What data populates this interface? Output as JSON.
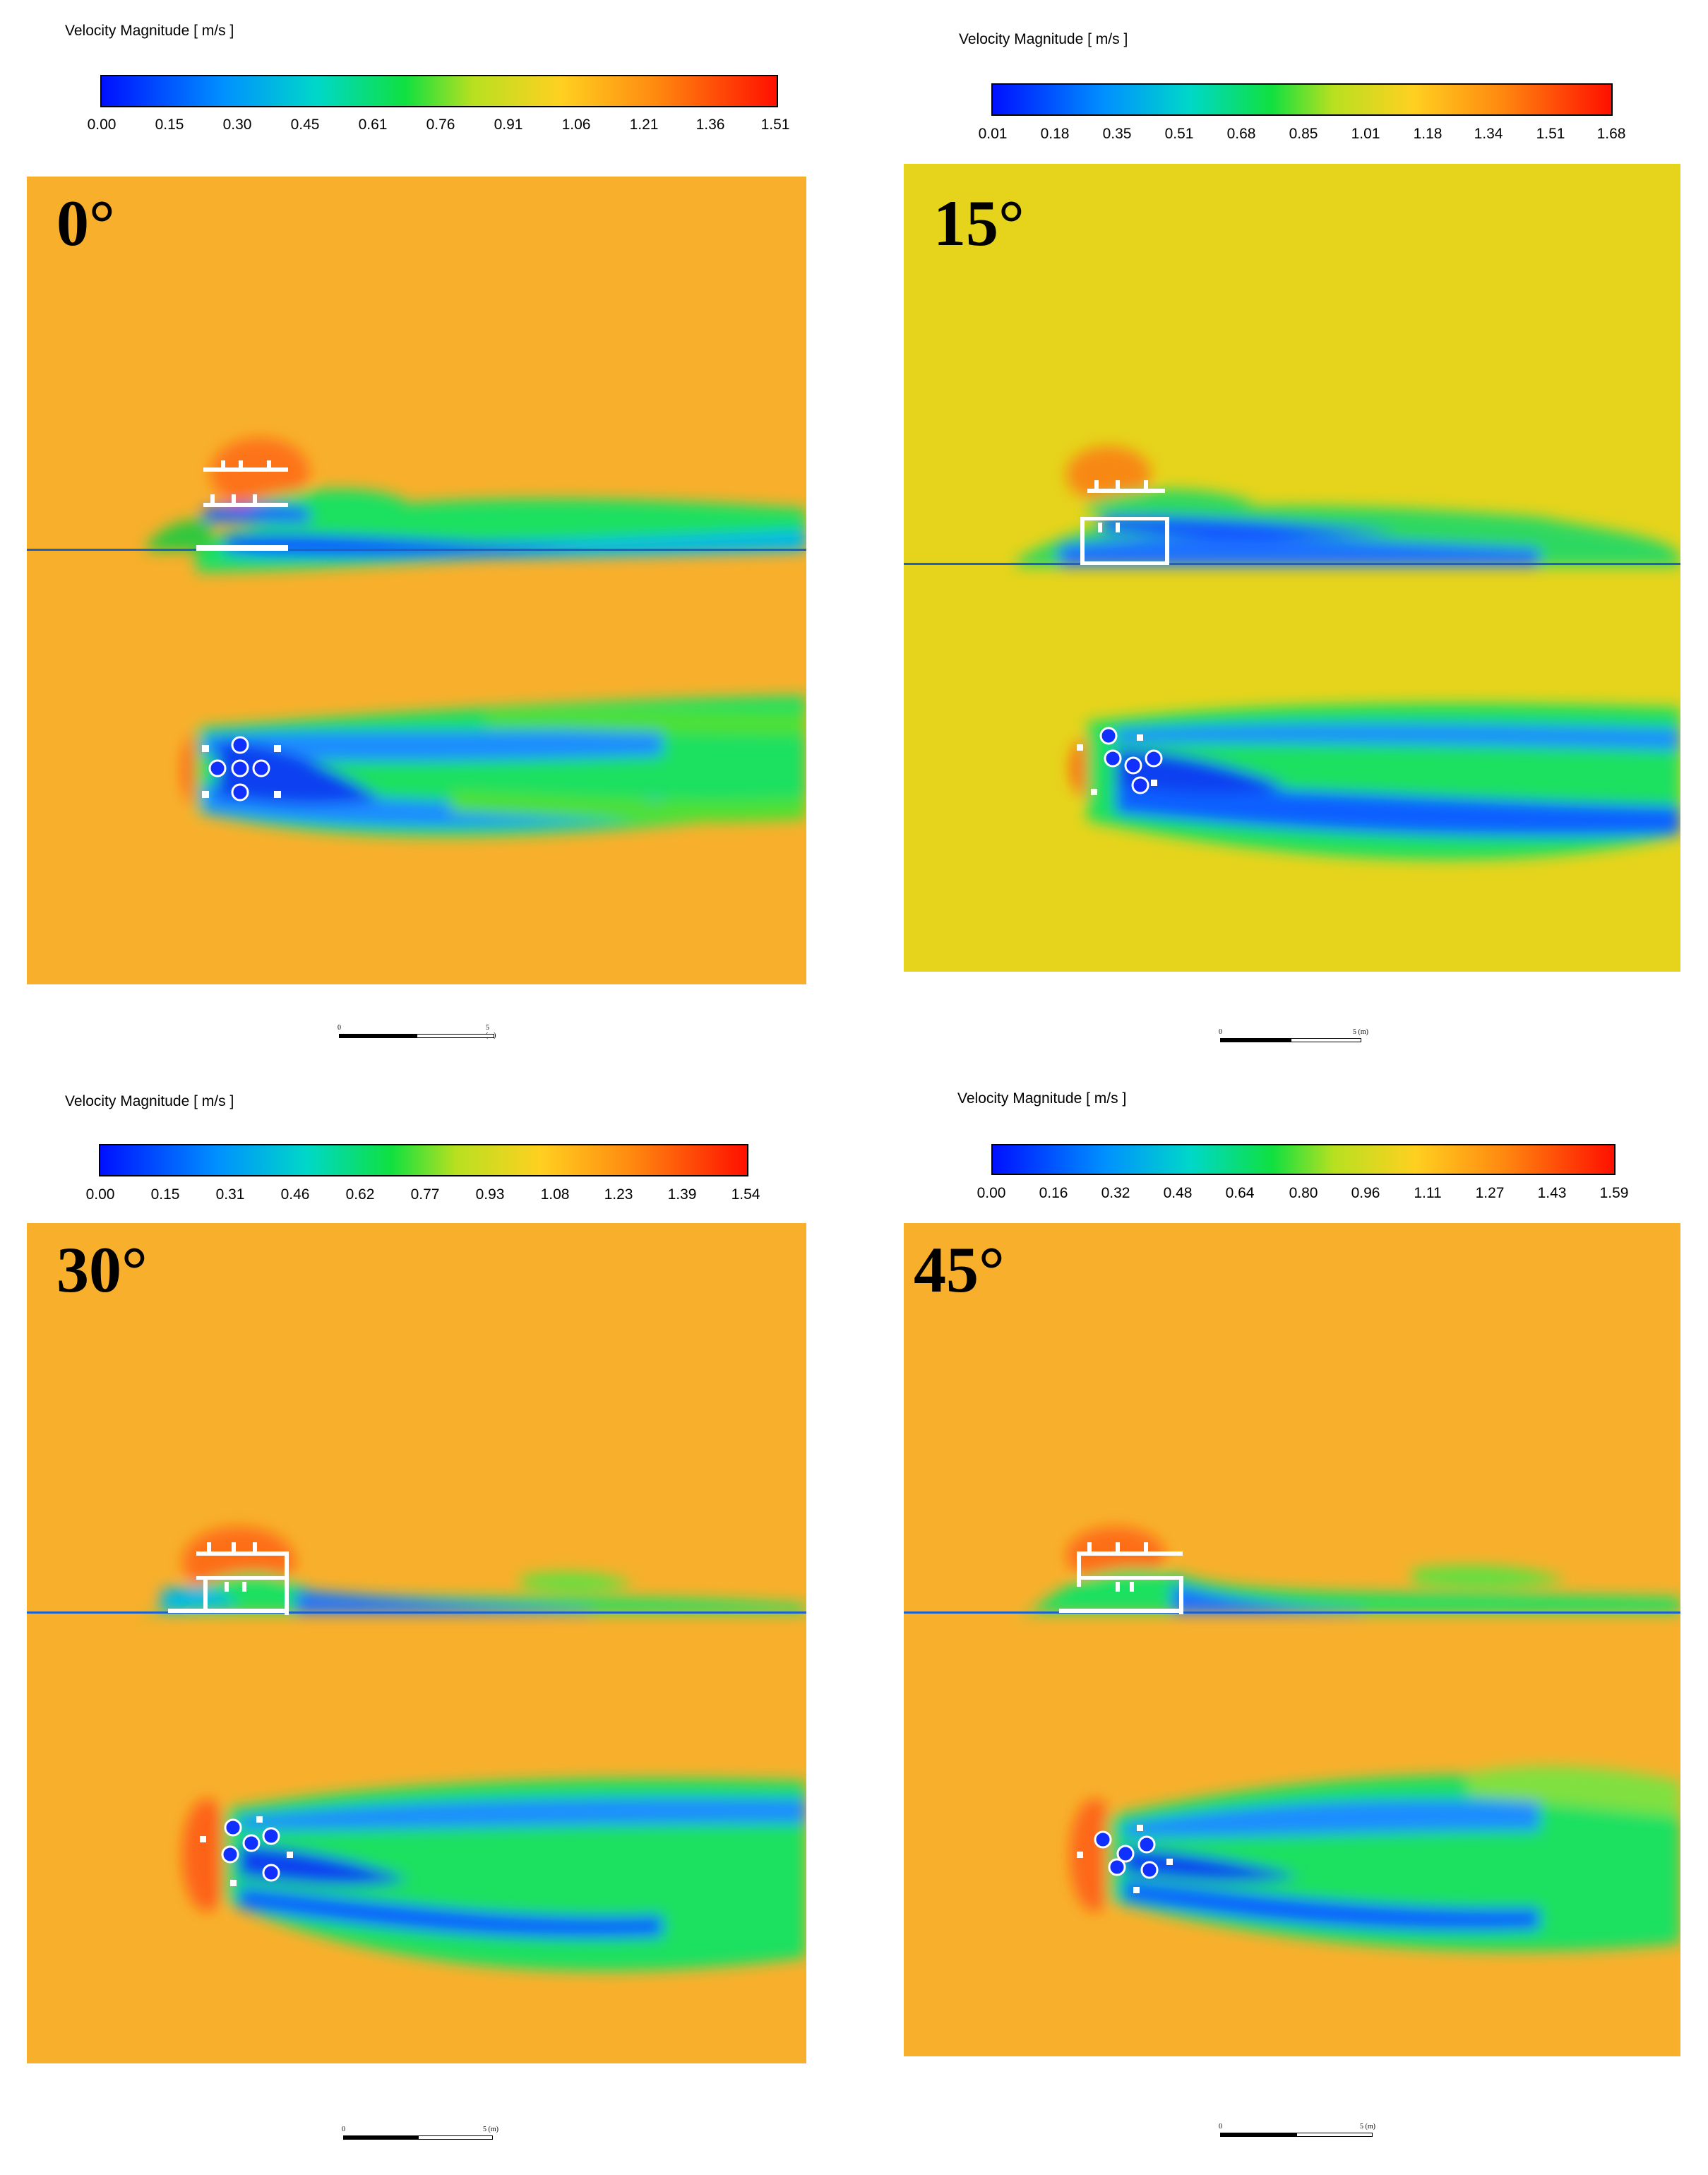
{
  "panels": [
    {
      "colorbar": {
        "title": "Velocity Magnitude [ m/s ]",
        "ticks": [
          "0.00",
          "0.15",
          "0.30",
          "0.45",
          "0.61",
          "0.76",
          "0.91",
          "1.06",
          "1.21",
          "1.36",
          "1.51"
        ]
      },
      "angle_label": "0°",
      "scale_bar": {
        "start": "0",
        "end": "5 (m)"
      },
      "background_color": "#f8b02c"
    },
    {
      "colorbar": {
        "title": "Velocity Magnitude [ m/s ]",
        "ticks": [
          "0.01",
          "0.18",
          "0.35",
          "0.51",
          "0.68",
          "0.85",
          "1.01",
          "1.18",
          "1.34",
          "1.51",
          "1.68"
        ]
      },
      "angle_label": "15°",
      "scale_bar": {
        "start": "0",
        "end": "5 (m)"
      },
      "background_color": "#e6d41c"
    },
    {
      "colorbar": {
        "title": "Velocity Magnitude [ m/s ]",
        "ticks": [
          "0.00",
          "0.15",
          "0.31",
          "0.46",
          "0.62",
          "0.77",
          "0.93",
          "1.08",
          "1.23",
          "1.39",
          "1.54"
        ]
      },
      "angle_label": "30°",
      "scale_bar": {
        "start": "0",
        "end": "5 (m)"
      },
      "background_color": "#f8b02c"
    },
    {
      "colorbar": {
        "title": "Velocity Magnitude [ m/s ]",
        "ticks": [
          "0.00",
          "0.16",
          "0.32",
          "0.48",
          "0.64",
          "0.80",
          "0.96",
          "1.11",
          "1.27",
          "1.43",
          "1.59"
        ]
      },
      "angle_label": "45°",
      "scale_bar": {
        "start": "0",
        "end": "5 (m)"
      },
      "background_color": "#f8b02c"
    }
  ]
}
